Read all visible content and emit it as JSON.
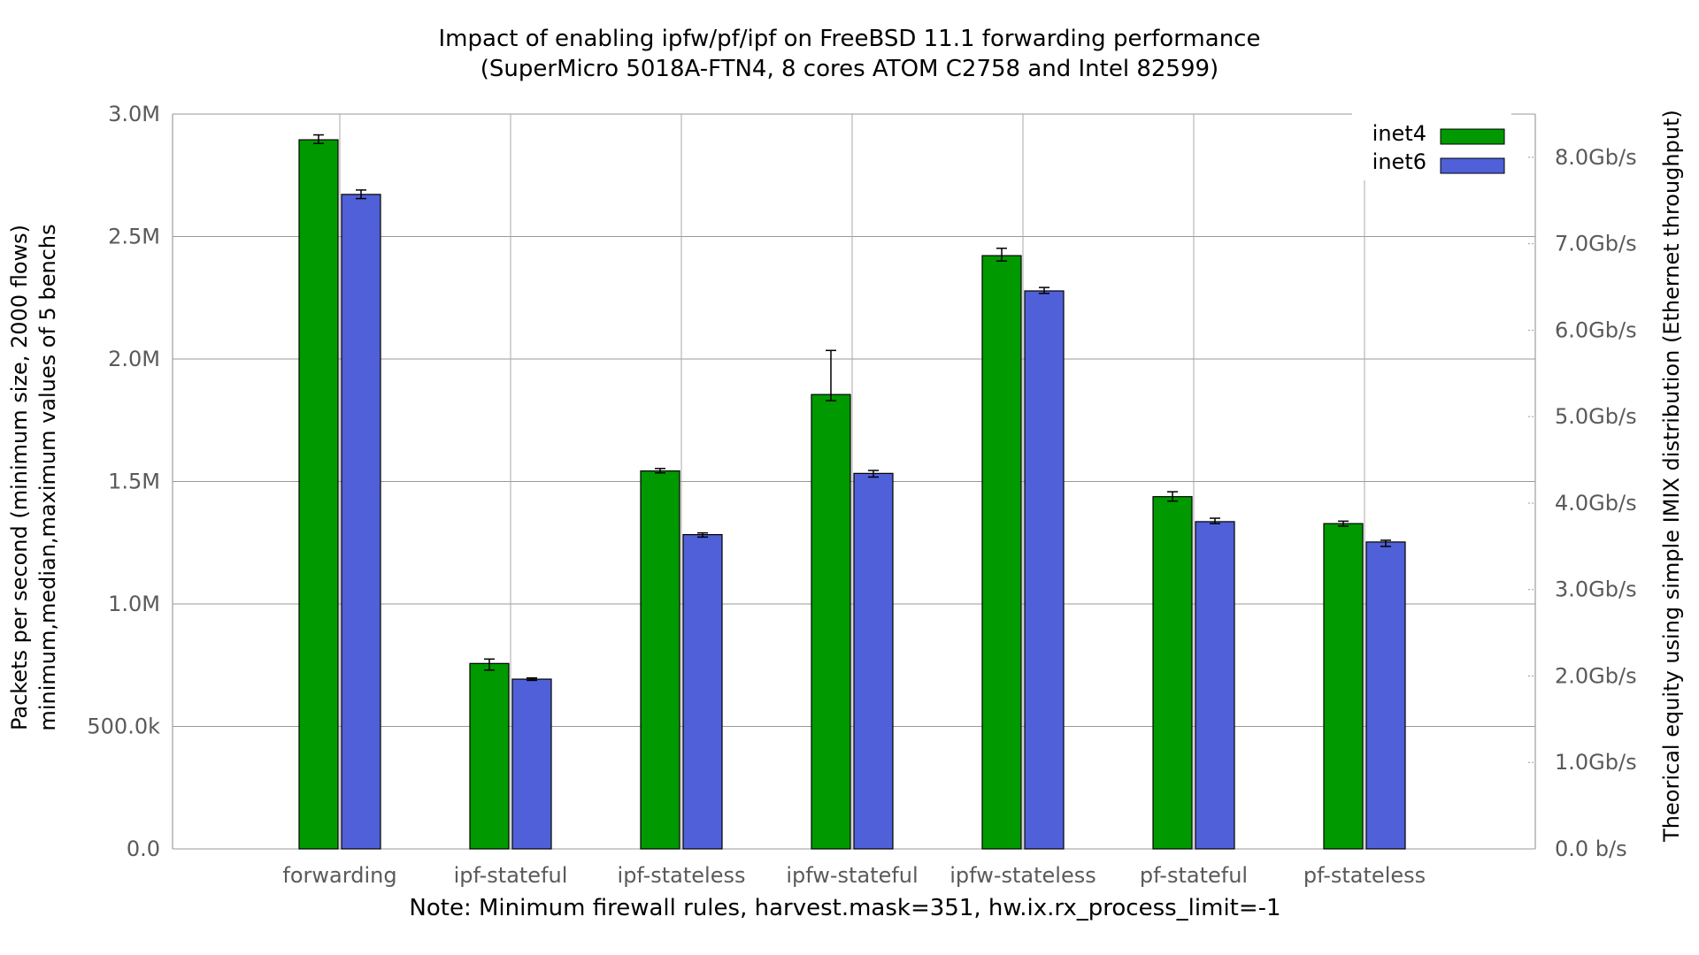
{
  "chart_data": {
    "type": "bar",
    "title": "Impact of enabling ipfw/pf/ipf on FreeBSD 11.1 forwarding performance",
    "subtitle": "(SuperMicro 5018A-FTN4, 8 cores ATOM C2758 and Intel 82599)",
    "ylabel_lines": [
      "Packets per second (minimum size, 2000 flows)",
      "minimum,median,maximum values of 5 benchs"
    ],
    "y2label": "Theorical equity using simple IMIX distribution (Ethernet throughput)",
    "note": "Note: Minimum firewall rules, harvest.mask=351, hw.ix.rx_process_limit=-1",
    "categories": [
      "forwarding",
      "ipf-stateful",
      "ipf-stateless",
      "ipfw-stateful",
      "ipfw-stateless",
      "pf-stateful",
      "pf-stateless"
    ],
    "ylim": [
      0,
      3000000
    ],
    "yticks": [
      {
        "v": 0,
        "label": "0.0"
      },
      {
        "v": 500000,
        "label": "500.0k"
      },
      {
        "v": 1000000,
        "label": "1.0M"
      },
      {
        "v": 1500000,
        "label": "1.5M"
      },
      {
        "v": 2000000,
        "label": "2.0M"
      },
      {
        "v": 2500000,
        "label": "2.5M"
      },
      {
        "v": 3000000,
        "label": "3.0M"
      }
    ],
    "y2ticks": [
      {
        "gb": 0,
        "label": "0.0 b/s"
      },
      {
        "gb": 1,
        "label": "1.0Gb/s"
      },
      {
        "gb": 2,
        "label": "2.0Gb/s"
      },
      {
        "gb": 3,
        "label": "3.0Gb/s"
      },
      {
        "gb": 4,
        "label": "4.0Gb/s"
      },
      {
        "gb": 5,
        "label": "5.0Gb/s"
      },
      {
        "gb": 6,
        "label": "6.0Gb/s"
      },
      {
        "gb": 7,
        "label": "7.0Gb/s"
      },
      {
        "gb": 8,
        "label": "8.0Gb/s"
      }
    ],
    "y2lim_gb": [
      0,
      8.5
    ],
    "series": [
      {
        "name": "inet4",
        "color": "#009900",
        "values": [
          2895000,
          757000,
          1543000,
          1855000,
          2422000,
          1438000,
          1328000
        ],
        "min": [
          2880000,
          730000,
          1535000,
          1830000,
          2400000,
          1420000,
          1318000
        ],
        "max": [
          2915000,
          775000,
          1553000,
          2035000,
          2452000,
          1458000,
          1338000
        ]
      },
      {
        "name": "inet6",
        "color": "#5060d8",
        "values": [
          2672000,
          693000,
          1283000,
          1533000,
          2278000,
          1336000,
          1253000
        ],
        "min": [
          2655000,
          688000,
          1273000,
          1518000,
          2268000,
          1328000,
          1235000
        ],
        "max": [
          2690000,
          698000,
          1290000,
          1545000,
          2292000,
          1350000,
          1260000
        ]
      }
    ],
    "legend_position": "top-right",
    "grid": true
  }
}
